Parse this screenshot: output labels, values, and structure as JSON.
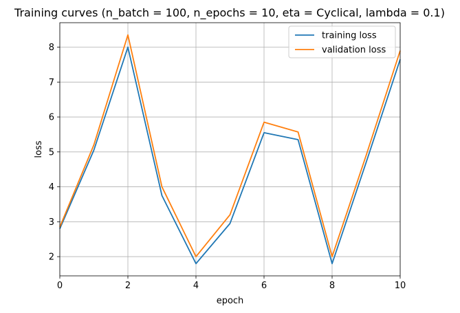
{
  "chart_data": {
    "type": "line",
    "title": "Training curves (n_batch = 100, n_epochs = 10, eta = Cyclical, lambda = 0.1)",
    "xlabel": "epoch",
    "ylabel": "loss",
    "xlim": [
      0,
      10
    ],
    "ylim": [
      1.45,
      8.7
    ],
    "x_ticks": [
      0,
      2,
      4,
      6,
      8,
      10
    ],
    "y_ticks": [
      2,
      3,
      4,
      5,
      6,
      7,
      8
    ],
    "grid": true,
    "legend_position": "upper right",
    "x": [
      0,
      1,
      2,
      3,
      4,
      5,
      6,
      7,
      8,
      9,
      10
    ],
    "series": [
      {
        "name": "training loss",
        "color": "#1f77b4",
        "values": [
          2.8,
          5.05,
          8.0,
          3.75,
          1.8,
          2.95,
          5.55,
          5.35,
          1.8,
          4.7,
          7.65
        ]
      },
      {
        "name": "validation loss",
        "color": "#ff7f0e",
        "values": [
          2.85,
          5.2,
          8.35,
          4.0,
          2.0,
          3.2,
          5.85,
          5.57,
          2.0,
          4.9,
          7.9
        ]
      }
    ]
  }
}
